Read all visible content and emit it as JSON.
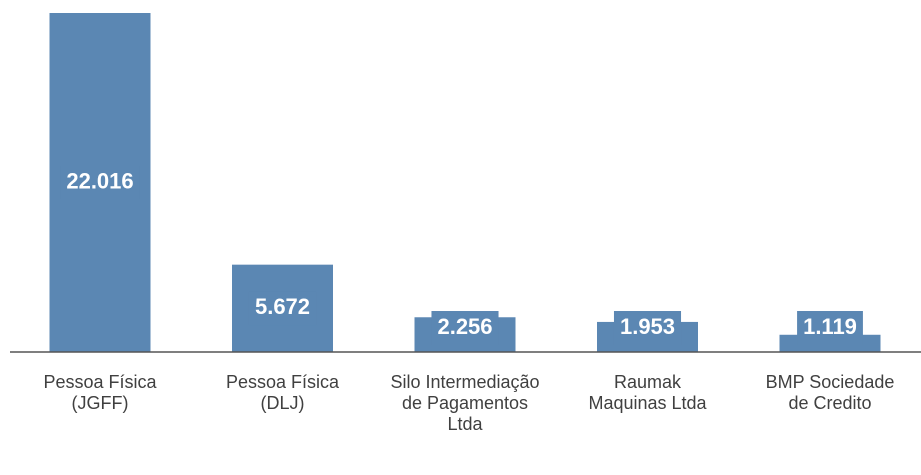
{
  "chart_data": {
    "type": "bar",
    "categories": [
      "Pessoa Física (JGFF)",
      "Pessoa Física (DLJ)",
      "Silo Intermediação de Pagamentos Ltda",
      "Raumak Maquinas Ltda",
      "BMP Sociedade de Credito"
    ],
    "values": [
      22016,
      5672,
      2256,
      1953,
      1119
    ],
    "value_labels": [
      "22.016",
      "5.672",
      "2.256",
      "1.953",
      "1.119"
    ],
    "color": "#5b87b3",
    "ylim": [
      0,
      22016
    ]
  }
}
